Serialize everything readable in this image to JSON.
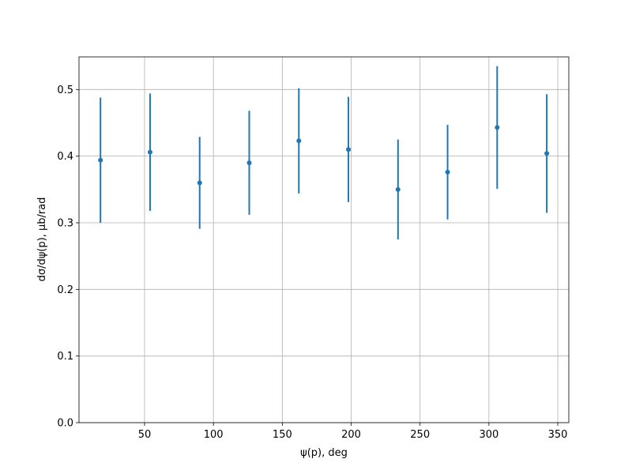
{
  "chart_data": {
    "type": "errorbar",
    "xlabel": "ψ(p), deg",
    "ylabel": "dσ/dψ(p), μb/rad",
    "x": [
      18,
      54,
      90,
      126,
      162,
      198,
      234,
      270,
      306,
      342
    ],
    "values": [
      0.394,
      0.406,
      0.36,
      0.39,
      0.423,
      0.41,
      0.35,
      0.376,
      0.443,
      0.404
    ],
    "errors": [
      0.094,
      0.088,
      0.069,
      0.078,
      0.079,
      0.079,
      0.075,
      0.071,
      0.092,
      0.089
    ],
    "color": "#1f77b4",
    "xlim": [
      2.4,
      358
    ],
    "ylim": [
      0,
      0.549
    ],
    "xticks": [
      50,
      100,
      150,
      200,
      250,
      300,
      350
    ],
    "yticks": [
      {
        "value": 0,
        "label": "0.0"
      },
      0.1,
      0.2,
      0.3,
      0.4,
      0.5
    ],
    "grid": true
  }
}
